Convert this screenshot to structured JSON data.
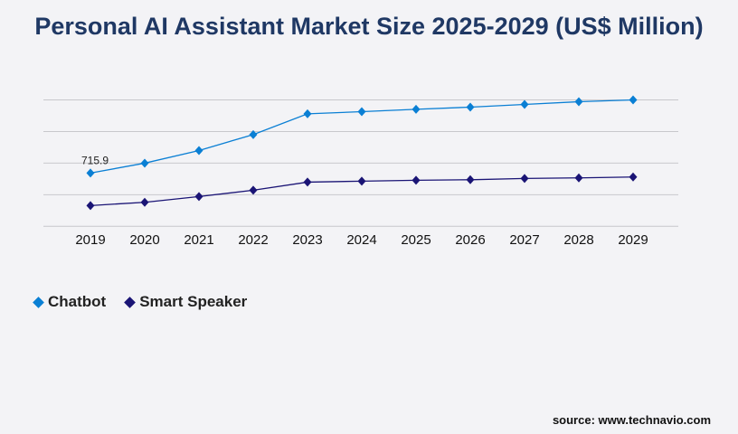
{
  "chart_data": {
    "type": "line",
    "title": "Personal AI Assistant Market Size 2025-2029 (US$ Million)",
    "categories": [
      "2019",
      "2020",
      "2021",
      "2022",
      "2023",
      "2024",
      "2025",
      "2026",
      "2027",
      "2028",
      "2029"
    ],
    "series": [
      {
        "name": "Chatbot",
        "color": "#0a7fd4",
        "values": [
          715.9,
          849,
          1019,
          1233,
          1512,
          1541,
          1573,
          1602,
          1638,
          1675,
          1699
        ]
      },
      {
        "name": "Smart Speaker",
        "color": "#1a1475",
        "values": [
          279,
          323,
          400,
          485,
          594,
          607,
          619,
          626,
          643,
          651,
          663
        ]
      }
    ],
    "data_labels": [
      {
        "series": "Chatbot",
        "category": "2019",
        "text": "715.9"
      }
    ],
    "ylim": [
      0,
      1699
    ],
    "grid": true,
    "legend_position": "bottom-left",
    "source": "source: www.technavio.com"
  }
}
